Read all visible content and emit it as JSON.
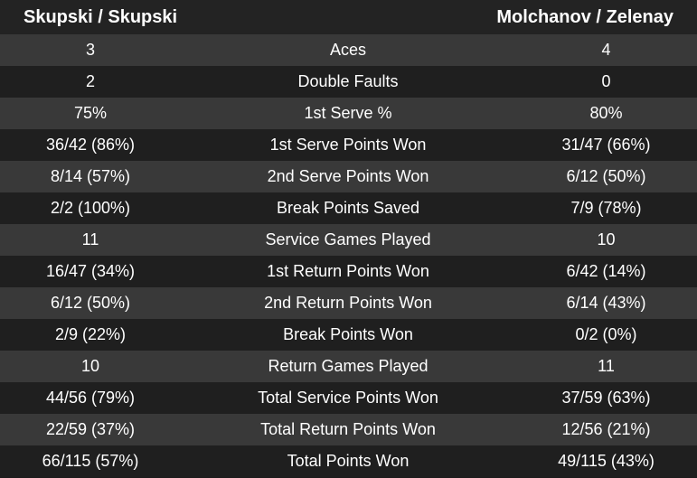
{
  "header": {
    "left": "Skupski / Skupski",
    "right": "Molchanov / Zelenay"
  },
  "table": {
    "rows": [
      [
        "3",
        "Aces",
        "4"
      ],
      [
        "2",
        "Double Faults",
        "0"
      ],
      [
        "75%",
        "1st Serve %",
        "80%"
      ],
      [
        "36/42 (86%)",
        "1st Serve Points Won",
        "31/47 (66%)"
      ],
      [
        "8/14 (57%)",
        "2nd Serve Points Won",
        "6/12 (50%)"
      ],
      [
        "2/2 (100%)",
        "Break Points Saved",
        "7/9 (78%)"
      ],
      [
        "11",
        "Service Games Played",
        "10"
      ],
      [
        "16/47 (34%)",
        "1st Return Points Won",
        "6/42 (14%)"
      ],
      [
        "6/12 (50%)",
        "2nd Return Points Won",
        "6/14 (43%)"
      ],
      [
        "2/9 (22%)",
        "Break Points Won",
        "0/2 (0%)"
      ],
      [
        "10",
        "Return Games Played",
        "11"
      ],
      [
        "44/56 (79%)",
        "Total Service Points Won",
        "37/59 (63%)"
      ],
      [
        "22/59 (37%)",
        "Total Return Points Won",
        "12/56 (21%)"
      ],
      [
        "66/115 (57%)",
        "Total Points Won",
        "49/115 (43%)"
      ]
    ]
  }
}
